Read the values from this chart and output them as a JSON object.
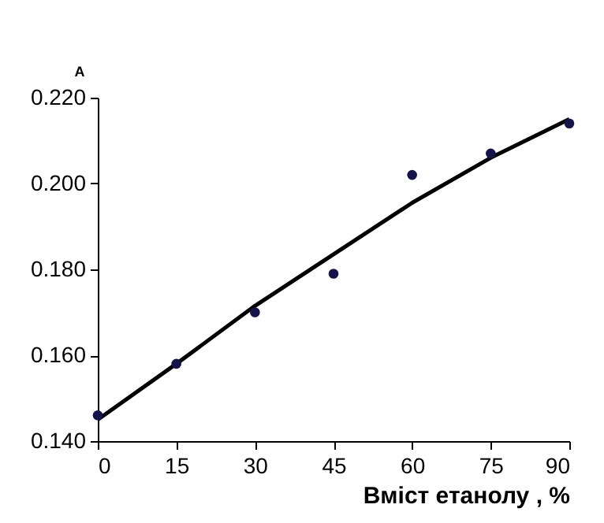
{
  "chart_data": {
    "type": "scatter",
    "xlabel": "Вміст етанолу , %",
    "ylabel": "A",
    "xlim": [
      0,
      90
    ],
    "xticks": [
      0,
      15,
      30,
      45,
      60,
      75,
      90
    ],
    "ylim": [
      0.14,
      0.22
    ],
    "yticks": [
      {
        "value": 0.14,
        "label": "0.140"
      },
      {
        "value": 0.16,
        "label": "0.160"
      },
      {
        "value": 0.18,
        "label": "0.180"
      },
      {
        "value": 0.2,
        "label": "0.200"
      },
      {
        "value": 0.22,
        "label": "0.220"
      }
    ],
    "grid": false,
    "marker": "circle",
    "series": [
      {
        "color": "#14144a",
        "x": [
          0,
          15,
          30,
          45,
          60,
          75,
          90
        ],
        "values": [
          0.146,
          0.158,
          0.17,
          0.179,
          0.202,
          0.207,
          0.214
        ]
      },
      {
        "type": "line",
        "color": "#000000",
        "line_style": "solid",
        "marker": "none",
        "x": [
          0,
          15,
          30,
          45,
          60,
          75,
          90
        ],
        "values": [
          0.145,
          0.158,
          0.1715,
          0.1835,
          0.1955,
          0.206,
          0.215
        ]
      }
    ]
  }
}
